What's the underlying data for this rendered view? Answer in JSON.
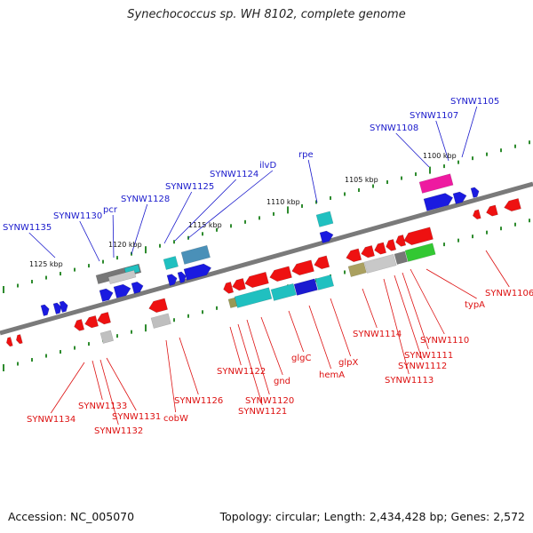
{
  "title": "Synechococcus sp. WH 8102, complete genome",
  "footer": {
    "accession": "Accession: NC_005070",
    "summary": "Topology: circular; Length: 2,434,428 bp; Genes: 2,572"
  },
  "colors": {
    "backbone": "#7a7a7a",
    "forward_label": "#1a1acc",
    "reverse_label": "#dd1111",
    "tick": "#2e8b2e",
    "forward_gene": "#1a1ae0",
    "reverse_gene": "#ee1111"
  },
  "scale_labels": [
    "1125 kbp",
    "1120 kbp",
    "1115 kbp",
    "1110 kbp",
    "1105 kbp",
    "1100 kbp"
  ],
  "forward_labels": [
    "SYNW1135",
    "SYNW1130",
    "pcr",
    "SYNW1128",
    "SYNW1125",
    "SYNW1124",
    "ilvD",
    "rpe",
    "SYNW1108",
    "SYNW1107",
    "SYNW1105"
  ],
  "reverse_labels": [
    "SYNW1134",
    "SYNW1133",
    "SYNW1132",
    "SYNW1131",
    "cobW",
    "SYNW1126",
    "SYNW1122",
    "SYNW1121",
    "SYNW1120",
    "gnd",
    "glgC",
    "hemA",
    "glpX",
    "SYNW1114",
    "SYNW1113",
    "SYNW1112",
    "SYNW1111",
    "SYNW1110",
    "typA",
    "SYNW1106"
  ]
}
